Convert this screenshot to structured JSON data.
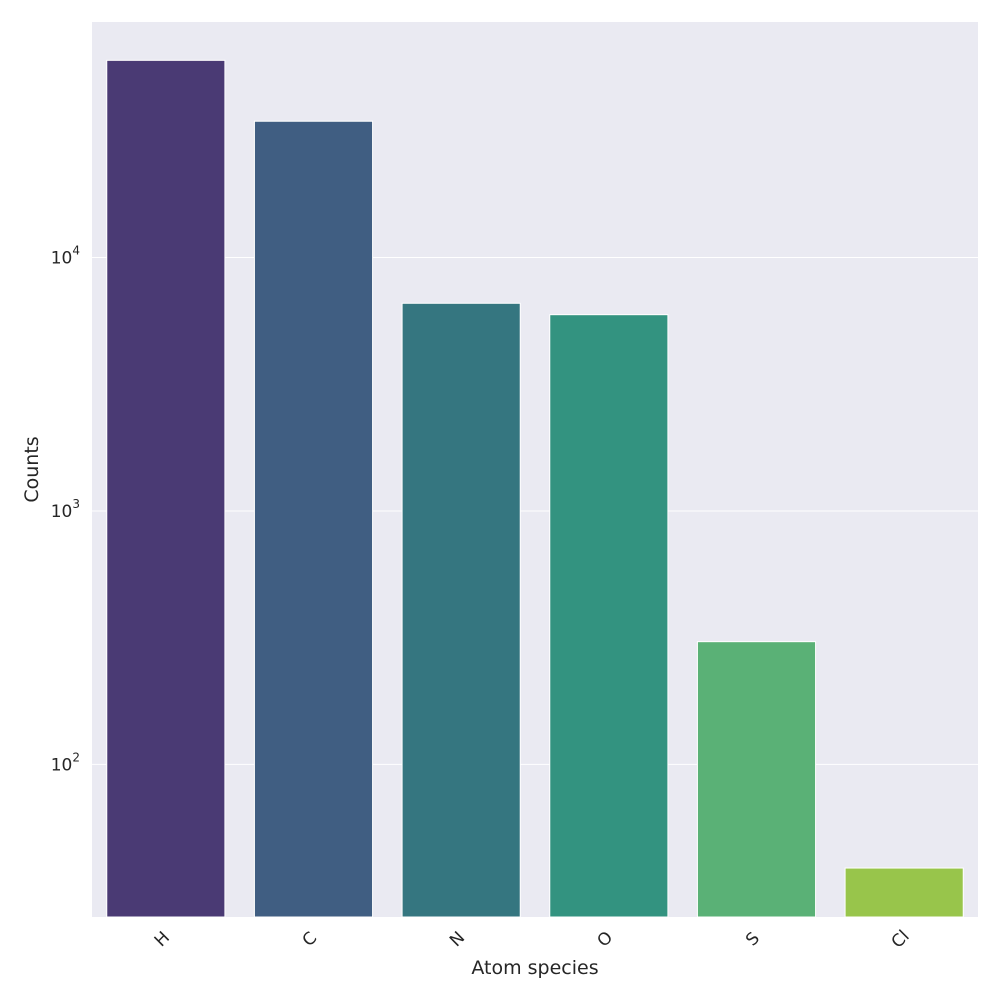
{
  "chart_data": {
    "type": "bar",
    "title": "",
    "xlabel": "Atom species",
    "ylabel": "Counts",
    "yscale": "log",
    "ylim": [
      25,
      85000
    ],
    "grid": true,
    "categories": [
      "H",
      "C",
      "N",
      "O",
      "S",
      "Cl"
    ],
    "values": [
      60000,
      34500,
      6600,
      5950,
      305,
      39
    ],
    "yticks": [
      {
        "value": 100,
        "base": "10",
        "exponent": "2"
      },
      {
        "value": 1000,
        "base": "10",
        "exponent": "3"
      },
      {
        "value": 10000,
        "base": "10",
        "exponent": "4"
      }
    ],
    "colors": [
      "#4a3a74",
      "#405e82",
      "#357680",
      "#339380",
      "#5ab176",
      "#98c54b"
    ],
    "background": "#eaeaf2",
    "grid_color": "#ffffff"
  }
}
